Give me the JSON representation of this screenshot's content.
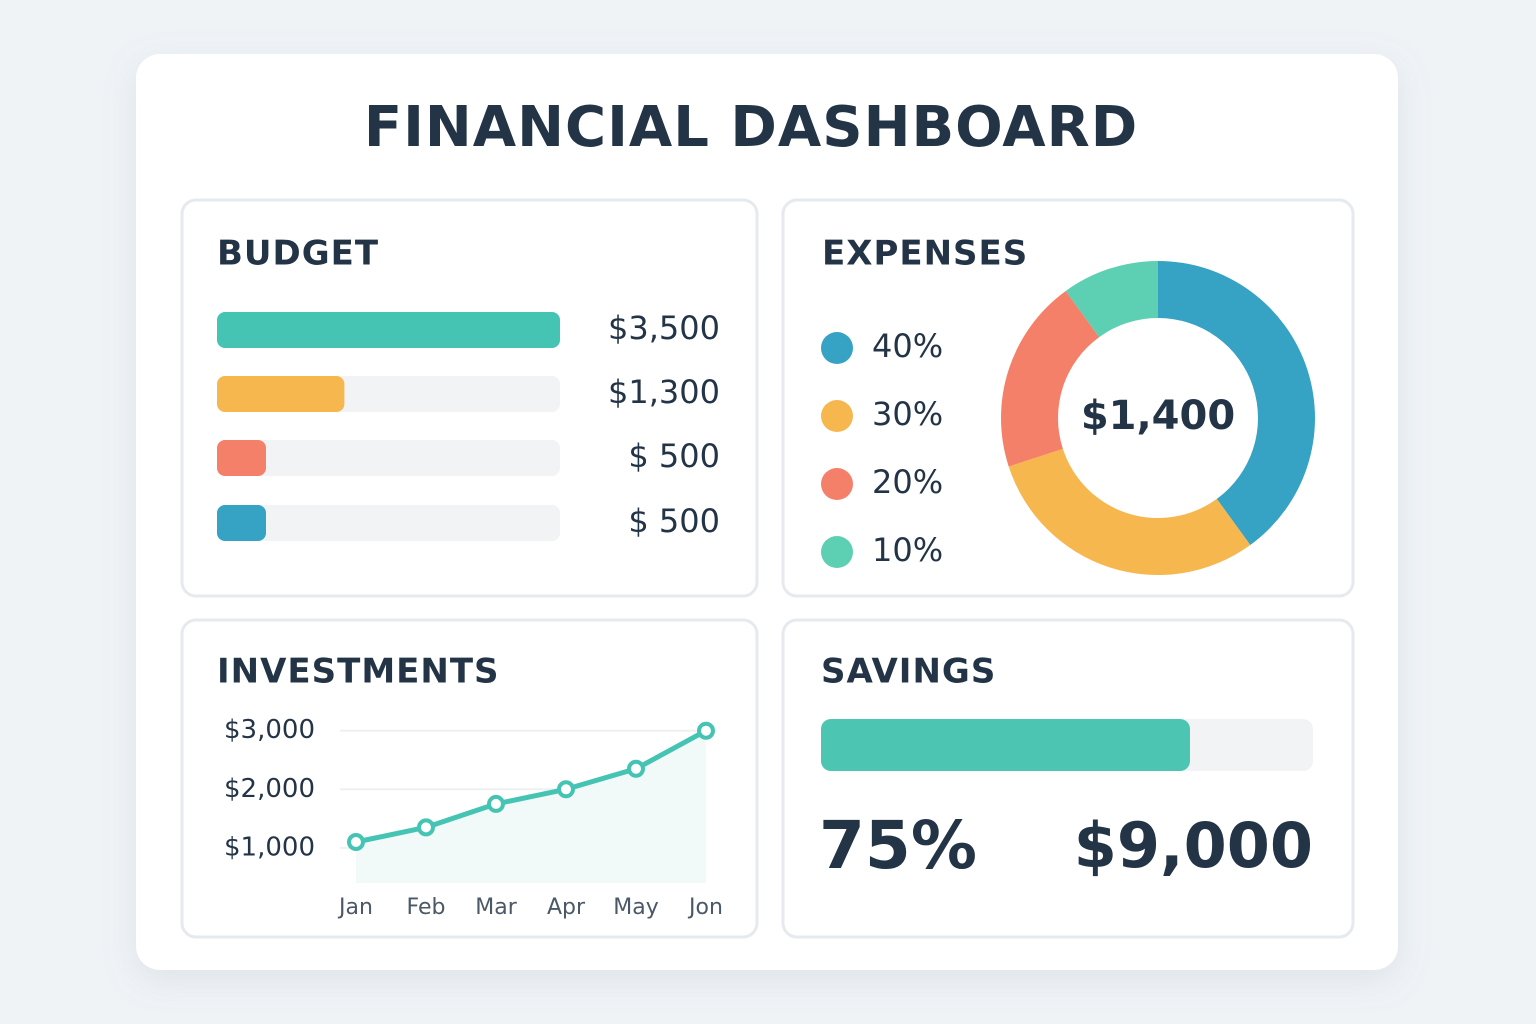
{
  "title": "FINANCIAL DASHBOARD",
  "chart_data": [
    {
      "type": "hbar",
      "title": "BUDGET",
      "values": [
        3500,
        1300,
        500,
        500
      ],
      "value_labels": [
        "$3,500",
        "$1,300",
        "$ 500",
        "$ 500"
      ],
      "colors": [
        "#45c4b4",
        "#f7b74f",
        "#f5806a",
        "#36a2c4"
      ],
      "xlim": [
        0,
        3500
      ]
    },
    {
      "type": "donut",
      "title": "EXPENSES",
      "values": [
        40,
        30,
        20,
        10
      ],
      "value_labels": [
        "40%",
        "30%",
        "20%",
        "10%"
      ],
      "colors": [
        "#36a2c4",
        "#f7b74f",
        "#f5806a",
        "#5dd0b3"
      ],
      "center_label": "$1,400"
    },
    {
      "type": "line",
      "title": "INVESTMENTS",
      "categories": [
        "Jan",
        "Feb",
        "Mar",
        "Apr",
        "May",
        "Jon"
      ],
      "values": [
        1100,
        1350,
        1750,
        2000,
        2350,
        3000
      ],
      "color": "#45c4b4",
      "ylim": [
        400,
        3200
      ],
      "yticks": [
        {
          "value": 1000,
          "label": "$1,000"
        },
        {
          "value": 2000,
          "label": "$2,000"
        },
        {
          "value": 3000,
          "label": "$3,000"
        }
      ],
      "grid": true
    },
    {
      "type": "progress",
      "title": "SAVINGS",
      "values": [
        75
      ],
      "value_labels": [
        "75%"
      ],
      "xlim": [
        0,
        100
      ],
      "color": "#4cc6b3",
      "amount_label": "$9,000"
    }
  ]
}
